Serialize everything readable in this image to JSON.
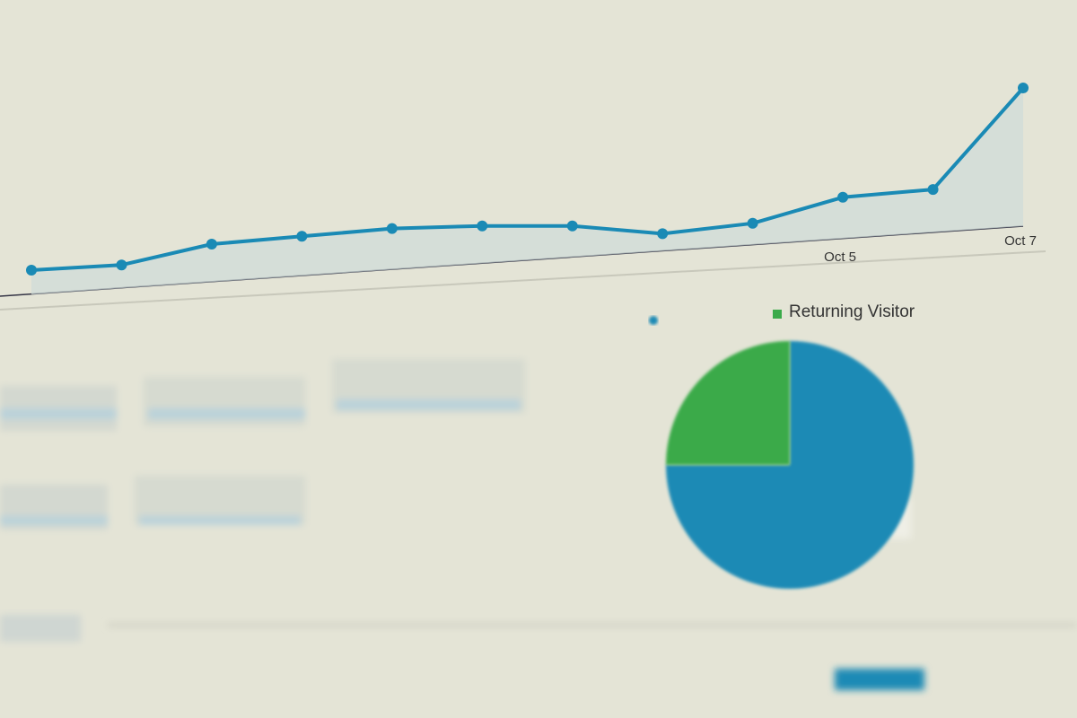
{
  "chart_data": [
    {
      "type": "line",
      "color": "#1a8ab5",
      "categories": [
        null,
        null,
        null,
        null,
        null,
        null,
        null,
        null,
        null,
        "Oct 5",
        null,
        "Oct 7"
      ],
      "values": [
        10,
        12,
        20,
        23,
        26,
        27,
        27,
        24,
        28,
        38,
        41,
        80
      ],
      "ylim": [
        0,
        100
      ]
    },
    {
      "type": "pie",
      "categories": [
        null,
        "Returning Visitor"
      ],
      "values": [
        75,
        25
      ],
      "colors": [
        "#1a8ab5",
        "#3aaa4a"
      ]
    }
  ]
}
